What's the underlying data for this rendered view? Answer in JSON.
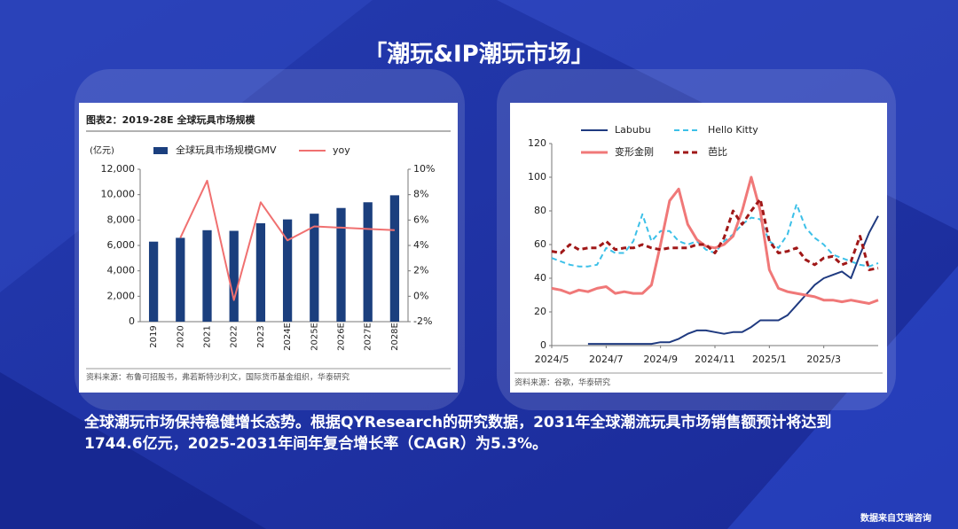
{
  "slide": {
    "title": "「潮玩&IP潮玩市场」",
    "paragraph": "全球潮玩市场保持稳健增长态势。根据QYResearch的研究数据，2031年全球潮流玩具市场销售额预计将达到1744.6亿元，2025-2031年间年复合增长率（CAGR）为5.3%。",
    "footer": "数据来自艾瑞咨询"
  },
  "chart_data": [
    {
      "type": "bar",
      "title": "图表2：2019-28E 全球玩具市场规模",
      "y_label": "(亿元)",
      "source": "资料来源：布鲁可招股书，弗若斯特沙利文，国际货币基金组织，华泰研究",
      "categories": [
        "2019",
        "2020",
        "2021",
        "2022",
        "2023",
        "2024E",
        "2025E",
        "2026E",
        "2027E",
        "2028E"
      ],
      "series": [
        {
          "name": "全球玩具市场规模GMV",
          "type": "bar",
          "color": "#1b3f7e",
          "values": [
            6300,
            6600,
            7200,
            7150,
            7750,
            8050,
            8500,
            8950,
            9400,
            9950
          ]
        },
        {
          "name": "yoy",
          "type": "line",
          "axis": "y2",
          "color": "#f07070",
          "values": [
            null,
            4.6,
            9.1,
            -0.3,
            7.4,
            4.4,
            5.5,
            5.4,
            5.3,
            5.2
          ]
        }
      ],
      "ylim": [
        0,
        12000
      ],
      "yticks": [
        0,
        {
          "value": 2000,
          "label": "2,000"
        },
        {
          "value": 4000,
          "label": "4,000"
        },
        {
          "value": 6000,
          "label": "6,000"
        },
        {
          "value": 8000,
          "label": "8,000"
        },
        {
          "value": 10000,
          "label": "10,000"
        },
        {
          "value": 12000,
          "label": "12,000"
        }
      ],
      "y2lim": [
        -2,
        10
      ],
      "y2ticks": [
        {
          "value": -2,
          "label": "-2%"
        },
        {
          "value": 0,
          "label": "0%"
        },
        {
          "value": 2,
          "label": "2%"
        },
        {
          "value": 4,
          "label": "4%"
        },
        {
          "value": 6,
          "label": "6%"
        },
        {
          "value": 8,
          "label": "8%"
        },
        {
          "value": 10,
          "label": "10%"
        }
      ],
      "grid": false
    },
    {
      "type": "line",
      "source": "资料来源：谷歌，华泰研究",
      "categories": [
        "2024/5",
        null,
        null,
        null,
        null,
        null,
        "2024/7",
        null,
        null,
        null,
        null,
        null,
        "2024/9",
        null,
        null,
        null,
        null,
        null,
        "2024/11",
        null,
        null,
        null,
        null,
        null,
        "2025/1",
        null,
        null,
        null,
        null,
        null,
        "2025/3",
        null,
        null,
        null,
        null,
        null,
        null
      ],
      "series": [
        {
          "name": "Labubu",
          "color": "#1f3a80",
          "style": "solid",
          "values": [
            null,
            null,
            null,
            null,
            1,
            1,
            1,
            1,
            1,
            1,
            1,
            1,
            2,
            2,
            4,
            7,
            9,
            9,
            8,
            7,
            8,
            8,
            11,
            15,
            15,
            15,
            18,
            24,
            30,
            36,
            40,
            42,
            44,
            40,
            54,
            67,
            77
          ]
        },
        {
          "name": "Hello Kitty",
          "color": "#3cc0e8",
          "style": "dashed",
          "values": [
            52,
            50,
            48,
            47,
            47,
            48,
            58,
            55,
            55,
            62,
            78,
            62,
            68,
            68,
            62,
            60,
            62,
            57,
            55,
            62,
            66,
            72,
            76,
            75,
            62,
            58,
            66,
            84,
            70,
            64,
            60,
            54,
            52,
            50,
            48,
            47,
            49
          ]
        },
        {
          "name": "变形金刚",
          "color": "#f07878",
          "style": "solid",
          "values": [
            34,
            33,
            31,
            33,
            32,
            34,
            35,
            31,
            32,
            31,
            31,
            36,
            60,
            86,
            93,
            72,
            63,
            59,
            58,
            60,
            65,
            80,
            100,
            80,
            45,
            34,
            32,
            31,
            30,
            29,
            27,
            27,
            26,
            27,
            26,
            25,
            27
          ]
        },
        {
          "name": "芭比",
          "color": "#a01818",
          "style": "dashed",
          "values": [
            56,
            55,
            60,
            57,
            58,
            58,
            62,
            57,
            58,
            58,
            60,
            58,
            57,
            58,
            58,
            58,
            60,
            60,
            55,
            64,
            80,
            72,
            80,
            87,
            62,
            55,
            56,
            58,
            51,
            48,
            52,
            53,
            48,
            50,
            65,
            45,
            46
          ]
        }
      ],
      "ylim": [
        0,
        120
      ],
      "yticks": [
        0,
        20,
        40,
        60,
        80,
        100,
        120
      ],
      "grid": false
    }
  ]
}
